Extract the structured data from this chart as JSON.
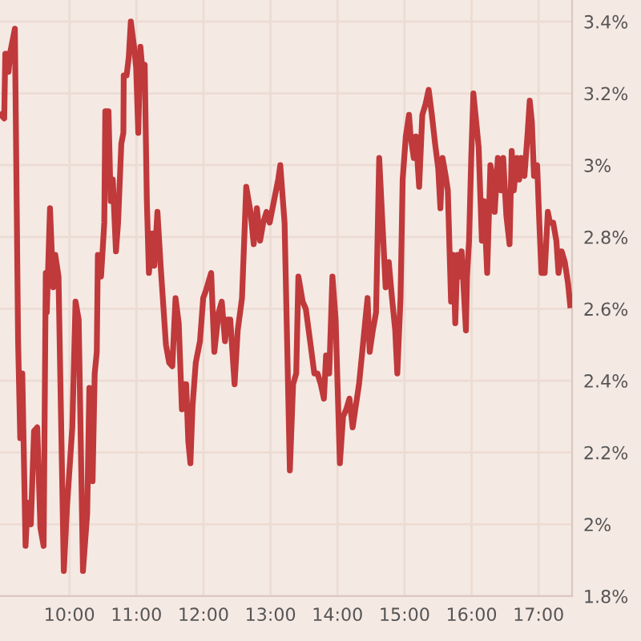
{
  "chart_data": {
    "type": "line",
    "grid": true,
    "marker": "none",
    "line_style": "solid",
    "xlim": [
      8.964,
      17.5
    ],
    "ylim": [
      1.8,
      3.46
    ],
    "xticks": [
      {
        "value": 10,
        "label": "10:00"
      },
      {
        "value": 11,
        "label": "11:00"
      },
      {
        "value": 12,
        "label": "12:00"
      },
      {
        "value": 13,
        "label": "13:00"
      },
      {
        "value": 14,
        "label": "14:00"
      },
      {
        "value": 15,
        "label": "15:00"
      },
      {
        "value": 16,
        "label": "16:00"
      },
      {
        "value": 17,
        "label": "17:00"
      }
    ],
    "yticks": [
      {
        "value": 1.8,
        "label": "1.8%"
      },
      {
        "value": 2.0,
        "label": "2%"
      },
      {
        "value": 2.2,
        "label": "2.2%"
      },
      {
        "value": 2.4,
        "label": "2.4%"
      },
      {
        "value": 2.6,
        "label": "2.6%"
      },
      {
        "value": 2.8,
        "label": "2.8%"
      },
      {
        "value": 3.0,
        "label": "3%"
      },
      {
        "value": 3.2,
        "label": "3.2%"
      },
      {
        "value": 3.4,
        "label": "3.4%"
      }
    ],
    "series": [
      {
        "color": "#c0393b",
        "x": [
          8.98,
          9.027,
          9.043,
          9.075,
          9.091,
          9.123,
          9.186,
          9.234,
          9.266,
          9.297,
          9.345,
          9.377,
          9.424,
          9.472,
          9.52,
          9.567,
          9.615,
          9.647,
          9.662,
          9.71,
          9.758,
          9.789,
          9.837,
          9.916,
          9.964,
          10.043,
          10.091,
          10.138,
          10.202,
          10.265,
          10.297,
          10.345,
          10.377,
          10.408,
          10.424,
          10.472,
          10.52,
          10.535,
          10.583,
          10.615,
          10.647,
          10.694,
          10.726,
          10.774,
          10.805,
          10.81,
          10.853,
          10.885,
          10.916,
          10.964,
          10.996,
          11.027,
          11.059,
          11.091,
          11.123,
          11.155,
          11.186,
          11.234,
          11.266,
          11.313,
          11.361,
          11.44,
          11.488,
          11.535,
          11.583,
          11.631,
          11.678,
          11.71,
          11.742,
          11.774,
          11.805,
          11.837,
          11.885,
          11.948,
          11.996,
          12.035,
          12.115,
          12.162,
          12.226,
          12.273,
          12.321,
          12.353,
          12.4,
          12.464,
          12.511,
          12.575,
          12.638,
          12.702,
          12.75,
          12.797,
          12.845,
          12.892,
          12.94,
          12.988,
          13.051,
          13.115,
          13.146,
          13.21,
          13.289,
          13.337,
          13.384,
          13.416,
          13.48,
          13.527,
          13.591,
          13.654,
          13.702,
          13.75,
          13.797,
          13.829,
          13.876,
          13.924,
          13.972,
          14.035,
          14.083,
          14.13,
          14.178,
          14.226,
          14.273,
          14.321,
          14.369,
          14.416,
          14.448,
          14.48,
          14.527,
          14.575,
          14.622,
          14.67,
          14.718,
          14.765,
          14.813,
          14.861,
          14.892,
          14.94,
          14.972,
          15.019,
          15.067,
          15.091,
          15.138,
          15.17,
          15.218,
          15.265,
          15.313,
          15.36,
          15.408,
          15.456,
          15.503,
          15.535,
          15.567,
          15.614,
          15.646,
          15.694,
          15.725,
          15.757,
          15.789,
          15.821,
          15.852,
          15.884,
          15.916,
          15.932,
          15.963,
          15.995,
          16.027,
          16.075,
          16.106,
          16.154,
          16.186,
          16.233,
          16.281,
          16.313,
          16.345,
          16.392,
          16.44,
          16.472,
          16.519,
          16.567,
          16.599,
          16.63,
          16.678,
          16.71,
          16.741,
          16.789,
          16.837,
          16.868,
          16.9,
          16.932,
          16.979,
          17.011,
          17.043,
          17.091,
          17.138,
          17.17,
          17.218,
          17.265,
          17.297,
          17.345,
          17.392,
          17.44,
          17.472
        ],
        "values": [
          3.14,
          3.13,
          3.31,
          3.31,
          3.26,
          3.32,
          3.38,
          2.51,
          2.24,
          2.42,
          1.94,
          2.06,
          2.0,
          2.26,
          2.27,
          1.99,
          1.94,
          2.7,
          2.59,
          2.88,
          2.66,
          2.75,
          2.69,
          1.87,
          2.05,
          2.27,
          2.62,
          2.57,
          1.87,
          2.03,
          2.38,
          2.12,
          2.42,
          2.48,
          2.75,
          2.69,
          2.84,
          3.15,
          3.15,
          2.9,
          2.96,
          2.76,
          2.84,
          3.06,
          3.09,
          3.25,
          3.25,
          3.3,
          3.4,
          3.33,
          3.27,
          3.09,
          3.33,
          3.26,
          3.28,
          2.9,
          2.7,
          2.81,
          2.72,
          2.87,
          2.72,
          2.5,
          2.45,
          2.44,
          2.63,
          2.56,
          2.32,
          2.39,
          2.39,
          2.23,
          2.17,
          2.33,
          2.45,
          2.51,
          2.63,
          2.65,
          2.7,
          2.48,
          2.59,
          2.62,
          2.51,
          2.57,
          2.57,
          2.39,
          2.54,
          2.63,
          2.94,
          2.87,
          2.78,
          2.88,
          2.79,
          2.84,
          2.87,
          2.84,
          2.9,
          2.96,
          3.0,
          2.84,
          2.15,
          2.39,
          2.42,
          2.69,
          2.62,
          2.6,
          2.51,
          2.42,
          2.42,
          2.39,
          2.35,
          2.47,
          2.42,
          2.69,
          2.57,
          2.17,
          2.3,
          2.32,
          2.35,
          2.27,
          2.33,
          2.39,
          2.48,
          2.57,
          2.63,
          2.48,
          2.54,
          2.59,
          3.02,
          2.84,
          2.66,
          2.73,
          2.63,
          2.54,
          2.42,
          2.63,
          2.96,
          3.08,
          3.14,
          3.08,
          3.02,
          3.08,
          2.94,
          3.14,
          3.17,
          3.21,
          3.14,
          3.06,
          2.99,
          2.88,
          3.02,
          2.97,
          2.93,
          2.62,
          2.75,
          2.56,
          2.75,
          2.69,
          2.76,
          2.65,
          2.54,
          2.69,
          2.79,
          3.02,
          3.2,
          3.11,
          3.05,
          2.79,
          2.9,
          2.7,
          3.0,
          2.97,
          2.87,
          3.02,
          2.93,
          3.02,
          2.86,
          2.78,
          3.04,
          2.93,
          3.02,
          2.96,
          3.02,
          2.97,
          3.09,
          3.18,
          3.12,
          2.97,
          3.0,
          2.84,
          2.7,
          2.7,
          2.87,
          2.84,
          2.84,
          2.79,
          2.7,
          2.76,
          2.73,
          2.67,
          2.61
        ]
      }
    ]
  }
}
